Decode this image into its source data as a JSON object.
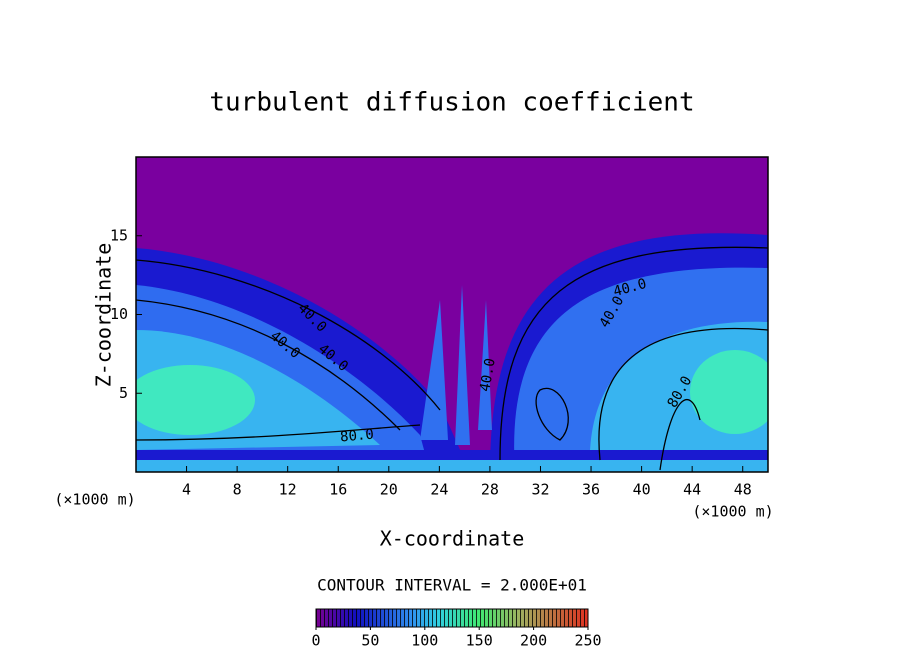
{
  "chart_data": {
    "type": "contour",
    "title": "turbulent diffusion coefficient",
    "x_label": "X-coordinate",
    "y_label": "Z-coordinate",
    "x_unit": "(×1000 m)",
    "y_unit": "(×1000 m)",
    "xlim": [
      0,
      50
    ],
    "xticks": [
      4,
      8,
      12,
      16,
      20,
      24,
      28,
      32,
      36,
      40,
      44,
      48
    ],
    "ylim": [
      0,
      20
    ],
    "yticks": [
      5,
      10,
      15
    ],
    "contour_interval": "CONTOUR INTERVAL = 2.000E+01",
    "contour_labels": [
      "40.0",
      "40.0",
      "40.0",
      "40.0",
      "80.0",
      "40.0",
      "40.0",
      "80.0"
    ],
    "colorbar": {
      "lim": [
        0,
        250
      ],
      "ticks": [
        0,
        50,
        100,
        150,
        200,
        250
      ]
    }
  }
}
